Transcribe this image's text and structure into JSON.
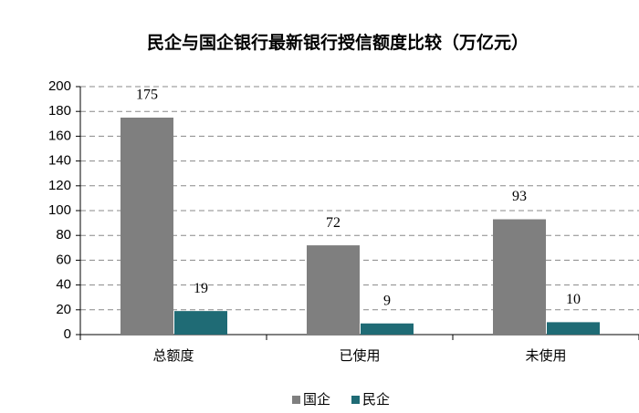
{
  "chart_data": {
    "type": "bar",
    "title": "民企与国企银行最新银行授信额度比较（万亿元）",
    "categories": [
      "总额度",
      "已使用",
      "未使用"
    ],
    "series": [
      {
        "name": "国企",
        "color": "#7f7f7f",
        "values": [
          175,
          72,
          93
        ]
      },
      {
        "name": "民企",
        "color": "#1f6b75",
        "values": [
          19,
          9,
          10
        ]
      }
    ],
    "ylim": [
      0,
      200
    ],
    "yticks": [
      0,
      20,
      40,
      60,
      80,
      100,
      120,
      140,
      160,
      180,
      200
    ],
    "grid": true,
    "legend": "bottom"
  }
}
